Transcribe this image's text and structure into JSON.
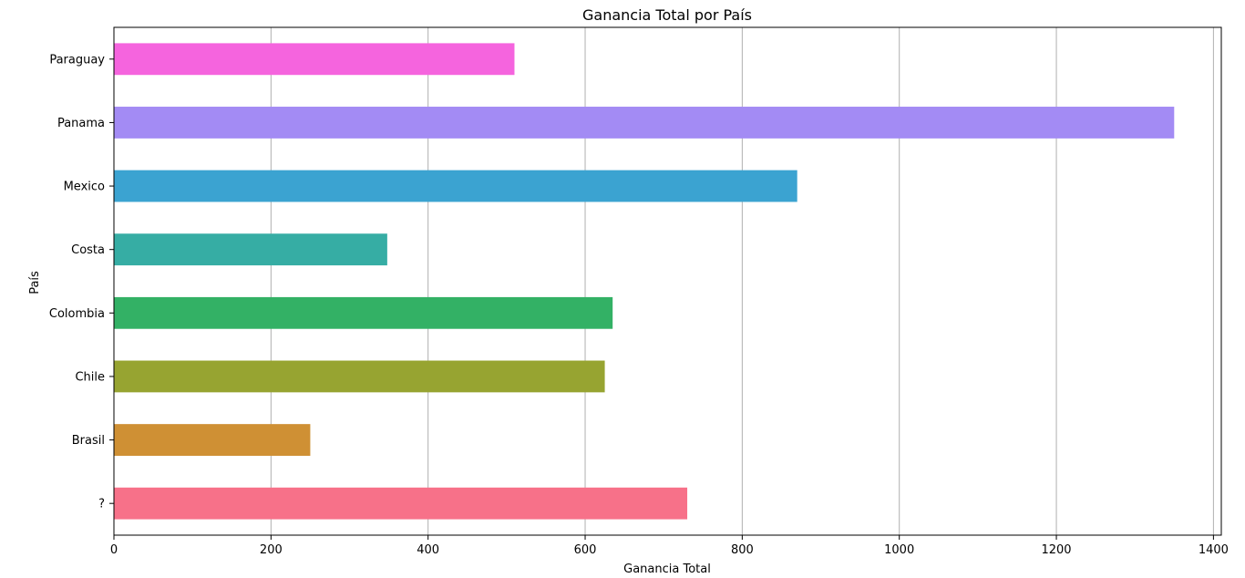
{
  "chart_data": {
    "type": "bar",
    "orientation": "horizontal",
    "title": "Ganancia Total por País",
    "xlabel": "Ganancia Total",
    "ylabel": "País",
    "xlim": [
      0,
      1410
    ],
    "xticks": [
      0,
      200,
      400,
      600,
      800,
      1000,
      1200,
      1400
    ],
    "grid": "vertical-only",
    "categories": [
      "?",
      "Brasil",
      "Chile",
      "Colombia",
      "Costa",
      "Mexico",
      "Panama",
      "Paraguay"
    ],
    "values": [
      730,
      250,
      625,
      635,
      348,
      870,
      1350,
      510
    ],
    "colors": [
      "#f77189",
      "#cf9034",
      "#97a431",
      "#33b165",
      "#36ada4",
      "#3ba3d1",
      "#a38bf4",
      "#f564de"
    ]
  }
}
